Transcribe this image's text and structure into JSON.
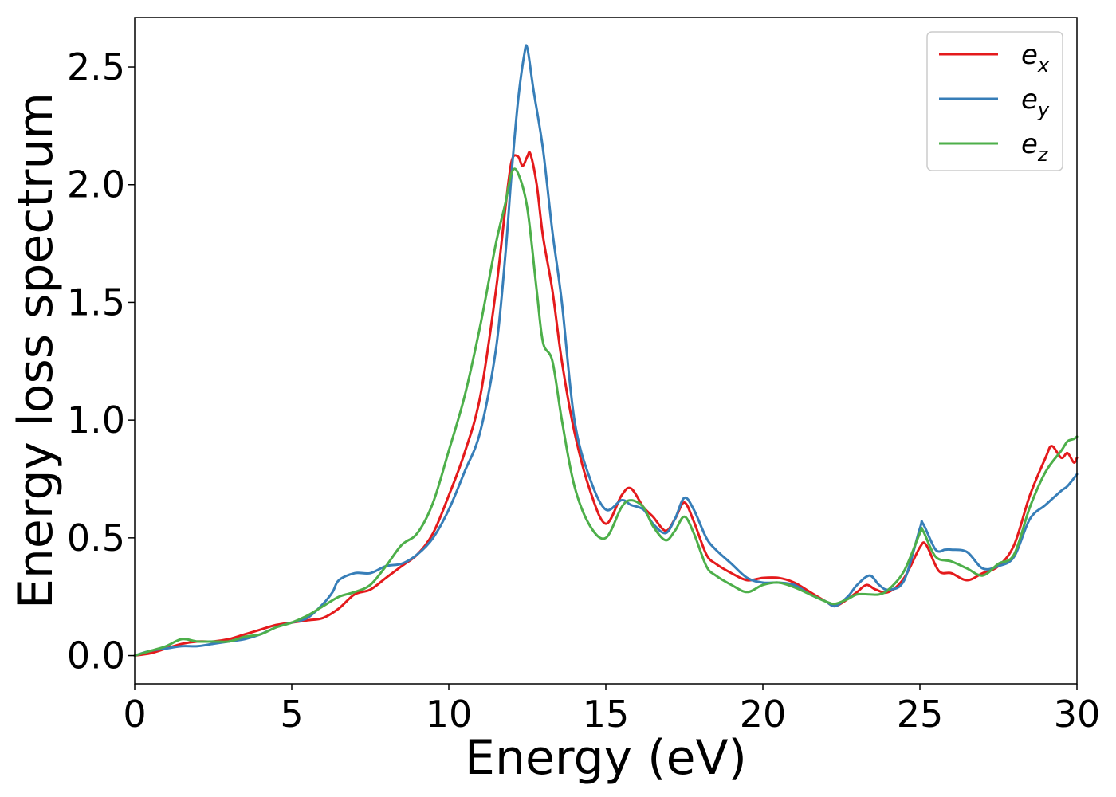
{
  "chart_data": {
    "type": "line",
    "xlabel": "Energy (eV)",
    "ylabel": "Energy loss spectrum",
    "xlim": [
      0,
      30
    ],
    "ylim": [
      -0.12,
      2.71
    ],
    "xticks": [
      0,
      5,
      10,
      15,
      20,
      25,
      30
    ],
    "xtick_labels": [
      "0",
      "5",
      "10",
      "15",
      "20",
      "25",
      "30"
    ],
    "yticks": [
      0.0,
      0.5,
      1.0,
      1.5,
      2.0,
      2.5
    ],
    "ytick_labels": [
      "0.0",
      "0.5",
      "1.0",
      "1.5",
      "2.0",
      "2.5"
    ],
    "grid": false,
    "legend_position": "top-right",
    "series": [
      {
        "name": "e_x",
        "label_main": "e",
        "label_sub": "x",
        "color": "#e41a1c",
        "points": [
          [
            0,
            0.0
          ],
          [
            0.5,
            0.01
          ],
          [
            1,
            0.03
          ],
          [
            1.5,
            0.05
          ],
          [
            2,
            0.06
          ],
          [
            2.5,
            0.06
          ],
          [
            3,
            0.07
          ],
          [
            3.5,
            0.09
          ],
          [
            4,
            0.11
          ],
          [
            4.5,
            0.13
          ],
          [
            5,
            0.14
          ],
          [
            5.5,
            0.15
          ],
          [
            6,
            0.16
          ],
          [
            6.5,
            0.2
          ],
          [
            7,
            0.26
          ],
          [
            7.5,
            0.28
          ],
          [
            8,
            0.33
          ],
          [
            8.5,
            0.38
          ],
          [
            9,
            0.43
          ],
          [
            9.5,
            0.52
          ],
          [
            10,
            0.68
          ],
          [
            10.5,
            0.86
          ],
          [
            11,
            1.1
          ],
          [
            11.5,
            1.55
          ],
          [
            11.8,
            1.9
          ],
          [
            12,
            2.1
          ],
          [
            12.2,
            2.12
          ],
          [
            12.35,
            2.08
          ],
          [
            12.5,
            2.12
          ],
          [
            12.6,
            2.13
          ],
          [
            12.8,
            2.0
          ],
          [
            13,
            1.78
          ],
          [
            13.3,
            1.55
          ],
          [
            13.6,
            1.25
          ],
          [
            14,
            0.95
          ],
          [
            14.5,
            0.7
          ],
          [
            15,
            0.56
          ],
          [
            15.5,
            0.68
          ],
          [
            15.8,
            0.71
          ],
          [
            16.2,
            0.63
          ],
          [
            16.5,
            0.59
          ],
          [
            16.9,
            0.53
          ],
          [
            17.2,
            0.58
          ],
          [
            17.5,
            0.65
          ],
          [
            17.8,
            0.57
          ],
          [
            18.2,
            0.43
          ],
          [
            18.5,
            0.39
          ],
          [
            19,
            0.35
          ],
          [
            19.5,
            0.32
          ],
          [
            20,
            0.33
          ],
          [
            20.5,
            0.33
          ],
          [
            21,
            0.31
          ],
          [
            21.5,
            0.27
          ],
          [
            22,
            0.23
          ],
          [
            22.3,
            0.21
          ],
          [
            22.7,
            0.24
          ],
          [
            23,
            0.27
          ],
          [
            23.3,
            0.3
          ],
          [
            23.6,
            0.28
          ],
          [
            24,
            0.27
          ],
          [
            24.5,
            0.33
          ],
          [
            25,
            0.46
          ],
          [
            25.2,
            0.47
          ],
          [
            25.6,
            0.36
          ],
          [
            26,
            0.35
          ],
          [
            26.5,
            0.32
          ],
          [
            27,
            0.35
          ],
          [
            27.5,
            0.38
          ],
          [
            28,
            0.47
          ],
          [
            28.5,
            0.68
          ],
          [
            29,
            0.84
          ],
          [
            29.2,
            0.89
          ],
          [
            29.5,
            0.84
          ],
          [
            29.7,
            0.86
          ],
          [
            29.9,
            0.82
          ],
          [
            30,
            0.84
          ]
        ]
      },
      {
        "name": "e_y",
        "label_main": "e",
        "label_sub": "y",
        "color": "#377eb8",
        "points": [
          [
            0,
            0.0
          ],
          [
            0.5,
            0.02
          ],
          [
            1,
            0.03
          ],
          [
            1.5,
            0.04
          ],
          [
            2,
            0.04
          ],
          [
            2.5,
            0.05
          ],
          [
            3,
            0.06
          ],
          [
            3.5,
            0.07
          ],
          [
            4,
            0.09
          ],
          [
            4.5,
            0.12
          ],
          [
            5,
            0.14
          ],
          [
            5.5,
            0.16
          ],
          [
            6,
            0.22
          ],
          [
            6.3,
            0.27
          ],
          [
            6.5,
            0.32
          ],
          [
            7,
            0.35
          ],
          [
            7.5,
            0.35
          ],
          [
            8,
            0.38
          ],
          [
            8.5,
            0.39
          ],
          [
            9,
            0.43
          ],
          [
            9.5,
            0.5
          ],
          [
            10,
            0.62
          ],
          [
            10.5,
            0.78
          ],
          [
            11,
            0.95
          ],
          [
            11.5,
            1.3
          ],
          [
            11.8,
            1.7
          ],
          [
            12,
            2.05
          ],
          [
            12.2,
            2.35
          ],
          [
            12.4,
            2.55
          ],
          [
            12.5,
            2.58
          ],
          [
            12.7,
            2.4
          ],
          [
            13,
            2.15
          ],
          [
            13.3,
            1.8
          ],
          [
            13.6,
            1.5
          ],
          [
            14,
            1.0
          ],
          [
            14.5,
            0.75
          ],
          [
            15,
            0.62
          ],
          [
            15.5,
            0.66
          ],
          [
            15.8,
            0.64
          ],
          [
            16.2,
            0.62
          ],
          [
            16.5,
            0.56
          ],
          [
            16.9,
            0.52
          ],
          [
            17.2,
            0.58
          ],
          [
            17.5,
            0.67
          ],
          [
            17.8,
            0.62
          ],
          [
            18.2,
            0.5
          ],
          [
            18.5,
            0.45
          ],
          [
            19,
            0.39
          ],
          [
            19.5,
            0.33
          ],
          [
            20,
            0.31
          ],
          [
            20.5,
            0.31
          ],
          [
            21,
            0.3
          ],
          [
            21.5,
            0.26
          ],
          [
            22,
            0.23
          ],
          [
            22.3,
            0.21
          ],
          [
            22.7,
            0.25
          ],
          [
            23,
            0.3
          ],
          [
            23.4,
            0.34
          ],
          [
            23.7,
            0.3
          ],
          [
            24,
            0.28
          ],
          [
            24.5,
            0.32
          ],
          [
            25,
            0.54
          ],
          [
            25.1,
            0.56
          ],
          [
            25.5,
            0.45
          ],
          [
            25.8,
            0.45
          ],
          [
            26,
            0.45
          ],
          [
            26.5,
            0.44
          ],
          [
            27,
            0.37
          ],
          [
            27.5,
            0.38
          ],
          [
            28,
            0.42
          ],
          [
            28.5,
            0.58
          ],
          [
            29,
            0.64
          ],
          [
            29.5,
            0.7
          ],
          [
            29.7,
            0.72
          ],
          [
            30,
            0.77
          ]
        ]
      },
      {
        "name": "e_z",
        "label_main": "e",
        "label_sub": "z",
        "color": "#4daf4a",
        "points": [
          [
            0,
            0.0
          ],
          [
            0.5,
            0.02
          ],
          [
            1,
            0.04
          ],
          [
            1.5,
            0.07
          ],
          [
            2,
            0.06
          ],
          [
            2.5,
            0.06
          ],
          [
            3,
            0.06
          ],
          [
            3.5,
            0.08
          ],
          [
            4,
            0.09
          ],
          [
            4.5,
            0.12
          ],
          [
            5,
            0.14
          ],
          [
            5.5,
            0.17
          ],
          [
            6,
            0.21
          ],
          [
            6.5,
            0.25
          ],
          [
            7,
            0.27
          ],
          [
            7.5,
            0.3
          ],
          [
            8,
            0.38
          ],
          [
            8.5,
            0.47
          ],
          [
            9,
            0.52
          ],
          [
            9.5,
            0.65
          ],
          [
            10,
            0.87
          ],
          [
            10.5,
            1.1
          ],
          [
            11,
            1.4
          ],
          [
            11.5,
            1.75
          ],
          [
            11.8,
            1.92
          ],
          [
            12,
            2.05
          ],
          [
            12.2,
            2.05
          ],
          [
            12.5,
            1.9
          ],
          [
            12.8,
            1.55
          ],
          [
            13,
            1.33
          ],
          [
            13.3,
            1.25
          ],
          [
            13.6,
            1.0
          ],
          [
            14,
            0.72
          ],
          [
            14.5,
            0.55
          ],
          [
            15,
            0.5
          ],
          [
            15.5,
            0.63
          ],
          [
            15.8,
            0.66
          ],
          [
            16.2,
            0.63
          ],
          [
            16.5,
            0.55
          ],
          [
            16.9,
            0.49
          ],
          [
            17.2,
            0.53
          ],
          [
            17.5,
            0.59
          ],
          [
            17.8,
            0.52
          ],
          [
            18.2,
            0.38
          ],
          [
            18.5,
            0.34
          ],
          [
            19,
            0.3
          ],
          [
            19.5,
            0.27
          ],
          [
            20,
            0.3
          ],
          [
            20.5,
            0.31
          ],
          [
            21,
            0.29
          ],
          [
            21.5,
            0.26
          ],
          [
            22,
            0.23
          ],
          [
            22.3,
            0.22
          ],
          [
            22.7,
            0.24
          ],
          [
            23,
            0.26
          ],
          [
            23.4,
            0.26
          ],
          [
            23.7,
            0.26
          ],
          [
            24,
            0.28
          ],
          [
            24.5,
            0.36
          ],
          [
            25,
            0.52
          ],
          [
            25.1,
            0.53
          ],
          [
            25.5,
            0.42
          ],
          [
            26,
            0.4
          ],
          [
            26.5,
            0.37
          ],
          [
            27,
            0.34
          ],
          [
            27.5,
            0.39
          ],
          [
            28,
            0.43
          ],
          [
            28.5,
            0.63
          ],
          [
            29,
            0.78
          ],
          [
            29.5,
            0.87
          ],
          [
            29.7,
            0.91
          ],
          [
            29.9,
            0.92
          ],
          [
            30,
            0.93
          ]
        ]
      }
    ]
  }
}
